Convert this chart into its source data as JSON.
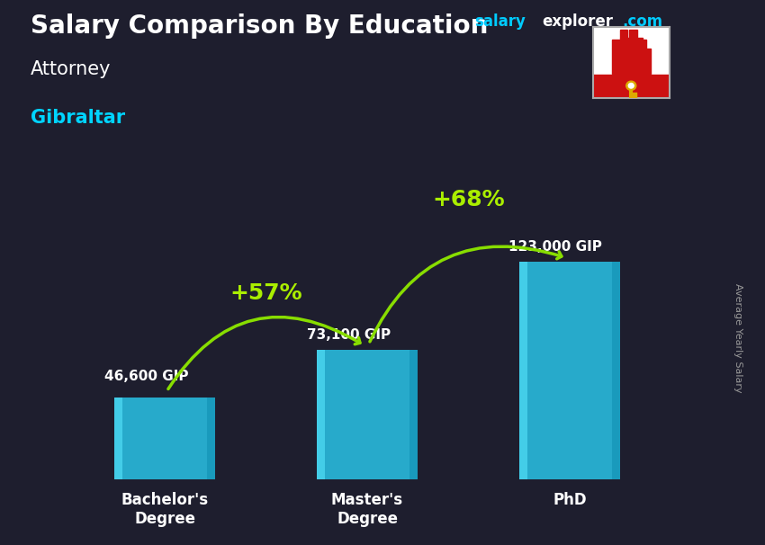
{
  "title": "Salary Comparison By Education",
  "subtitle_job": "Attorney",
  "subtitle_location": "Gibraltar",
  "categories": [
    "Bachelor's\nDegree",
    "Master's\nDegree",
    "PhD"
  ],
  "values": [
    46600,
    73100,
    123000
  ],
  "value_labels": [
    "46,600 GIP",
    "73,100 GIP",
    "123,000 GIP"
  ],
  "pct_labels": [
    "+57%",
    "+68%"
  ],
  "bar_color": "#29c4e8",
  "bar_edge_color": "#1a9fc0",
  "bar_alpha": 0.85,
  "background_color": "#1e1e2e",
  "title_color": "#ffffff",
  "job_color": "#ffffff",
  "location_color": "#00d4ff",
  "label_color": "#ffffff",
  "pct_color": "#aaee00",
  "arrow_color": "#88dd00",
  "ylabel": "Average Yearly Salary",
  "brand_text": "salaryexplorer.com",
  "brand_color_salary": "#00ccff",
  "brand_color_rest": "#ffffff",
  "ylim": [
    0,
    160000
  ],
  "bar_width": 0.5,
  "x_positions": [
    0,
    1,
    2
  ],
  "flag_top_color": "#ffffff",
  "flag_bottom_color": "#cc0000"
}
